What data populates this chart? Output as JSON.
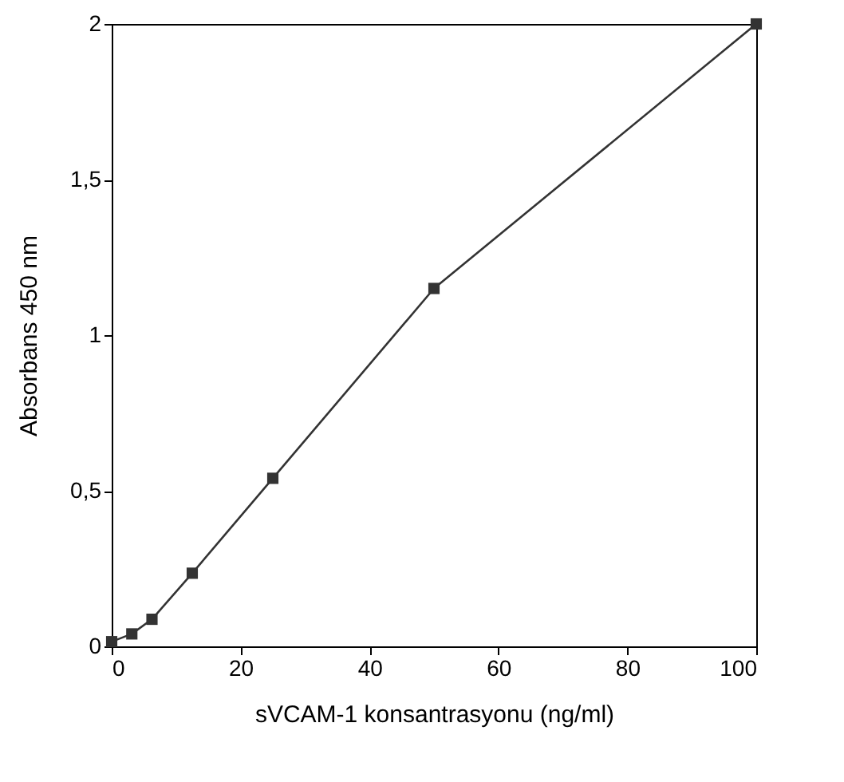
{
  "chart_data": {
    "type": "line",
    "xlabel": "sVCAM-1  konsantrasyonu (ng/ml)",
    "ylabel": "Absorbans 450 nm",
    "x": [
      0,
      3.125,
      6.25,
      12.5,
      25,
      50,
      100
    ],
    "series": [
      {
        "color": "#333333",
        "values": [
          0.015,
          0.04,
          0.087,
          0.235,
          0.54,
          1.15,
          2.0
        ]
      }
    ],
    "xlim": [
      0,
      100
    ],
    "ylim": [
      0,
      2
    ],
    "xticks": [
      0,
      20,
      40,
      60,
      80,
      100
    ],
    "yticks": [
      0,
      {
        "value": 0.5,
        "label": "0,5"
      },
      1,
      {
        "value": 1.5,
        "label": "1,5"
      },
      2
    ],
    "grid": false,
    "marker": "square",
    "line_style": "solid"
  }
}
